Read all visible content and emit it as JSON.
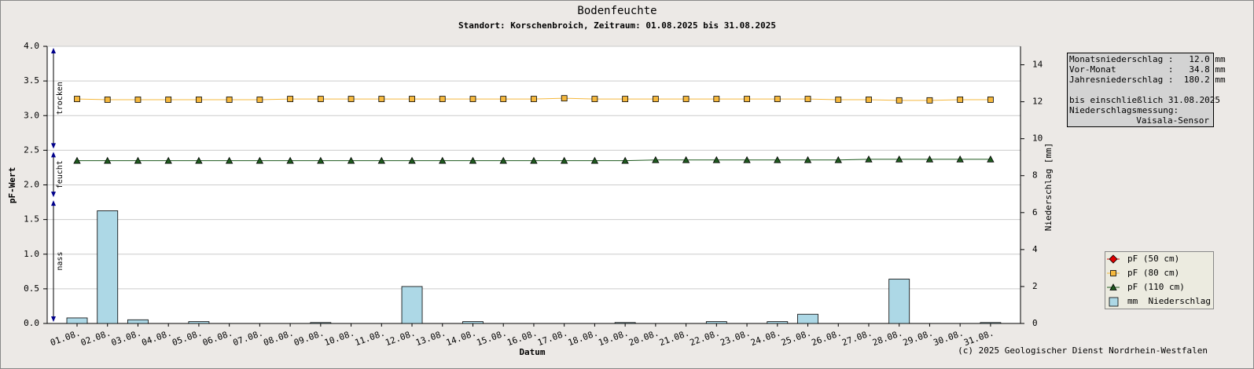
{
  "chart_data": {
    "type": "line",
    "title": "Bodenfeuchte",
    "subtitle": "Standort: Korschenbroich, Zeitraum: 01.08.2025 bis 31.08.2025",
    "x_label": "Datum",
    "y_label": "pF-Wert",
    "y2_label": "Niederschlag [mm]",
    "categories": [
      "01.08.",
      "02.08.",
      "03.08.",
      "04.08.",
      "05.08.",
      "06.08.",
      "07.08.",
      "08.08.",
      "09.08.",
      "10.08.",
      "11.08.",
      "12.08.",
      "13.08.",
      "14.08.",
      "15.08.",
      "16.08.",
      "17.08.",
      "18.08.",
      "19.08.",
      "20.08.",
      "21.08.",
      "22.08.",
      "23.08.",
      "24.08.",
      "25.08.",
      "26.08.",
      "27.08.",
      "28.08.",
      "29.08.",
      "30.08.",
      "31.08."
    ],
    "ylim": [
      0,
      4
    ],
    "yticks": [
      {
        "value": 0,
        "label": "0.0"
      },
      {
        "value": 0.5,
        "label": "0.5"
      },
      {
        "value": 1,
        "label": "1.0"
      },
      {
        "value": 1.5,
        "label": "1.5"
      },
      {
        "value": 2,
        "label": "2.0"
      },
      {
        "value": 2.5,
        "label": "2.5"
      },
      {
        "value": 3,
        "label": "3.0"
      },
      {
        "value": 3.5,
        "label": "3.5"
      },
      {
        "value": 4,
        "label": "4.0"
      }
    ],
    "y2lim": [
      0,
      15
    ],
    "y2ticks": [
      0,
      2,
      4,
      6,
      8,
      10,
      12,
      14
    ],
    "grid": true,
    "legend": "lower right",
    "zones": [
      {
        "label": "trocken",
        "from": 2.5,
        "to": 4
      },
      {
        "label": "feucht",
        "from": 1.8,
        "to": 2.5
      },
      {
        "label": "nass",
        "from": 0,
        "to": 1.8
      }
    ],
    "series": [
      {
        "name": "pF (50 cm)",
        "type": "line",
        "marker": "diamond",
        "color": "#e00000",
        "values": [
          null,
          null,
          null,
          null,
          null,
          null,
          null,
          null,
          null,
          null,
          null,
          null,
          null,
          null,
          null,
          null,
          null,
          null,
          null,
          null,
          null,
          null,
          null,
          null,
          null,
          null,
          null,
          null,
          null,
          null,
          null
        ]
      },
      {
        "name": "pF (80 cm)",
        "type": "line",
        "marker": "square",
        "color": "#f5b83d",
        "values": [
          3.24,
          3.23,
          3.23,
          3.23,
          3.23,
          3.23,
          3.23,
          3.24,
          3.24,
          3.24,
          3.24,
          3.24,
          3.24,
          3.24,
          3.24,
          3.24,
          3.25,
          3.24,
          3.24,
          3.24,
          3.24,
          3.24,
          3.24,
          3.24,
          3.24,
          3.23,
          3.23,
          3.22,
          3.22,
          3.23,
          3.23
        ]
      },
      {
        "name": "pF (110 cm)",
        "type": "line",
        "marker": "triangle",
        "color": "#1e5a1e",
        "values": [
          2.35,
          2.35,
          2.35,
          2.35,
          2.35,
          2.35,
          2.35,
          2.35,
          2.35,
          2.35,
          2.35,
          2.35,
          2.35,
          2.35,
          2.35,
          2.35,
          2.35,
          2.35,
          2.35,
          2.36,
          2.36,
          2.36,
          2.36,
          2.36,
          2.36,
          2.36,
          2.37,
          2.37,
          2.37,
          2.37,
          2.37
        ]
      },
      {
        "name": "mm  Niederschlag",
        "type": "bar",
        "axis": "y2",
        "color": "#add8e6",
        "values": [
          0.3,
          6.1,
          0.2,
          0,
          0.1,
          0,
          0,
          0,
          0.05,
          0,
          0,
          2.0,
          0,
          0.1,
          0,
          0,
          0,
          0,
          0.05,
          0,
          0,
          0.1,
          0,
          0.1,
          0.5,
          0,
          0,
          2.4,
          0,
          0,
          0.05
        ]
      }
    ]
  },
  "info_box": {
    "lines": [
      "Monatsniederschlag :   12.0 mm",
      "Vor-Monat          :   34.8 mm",
      "Jahresniederschlag :  180.2 mm"
    ],
    "lines2": [
      "bis einschließlich 31.08.2025",
      "Niederschlagsmessung:"
    ],
    "sensor": "Vaisala-Sensor"
  },
  "footer": "(c) 2025 Geologischer Dienst Nordrhein-Westfalen"
}
